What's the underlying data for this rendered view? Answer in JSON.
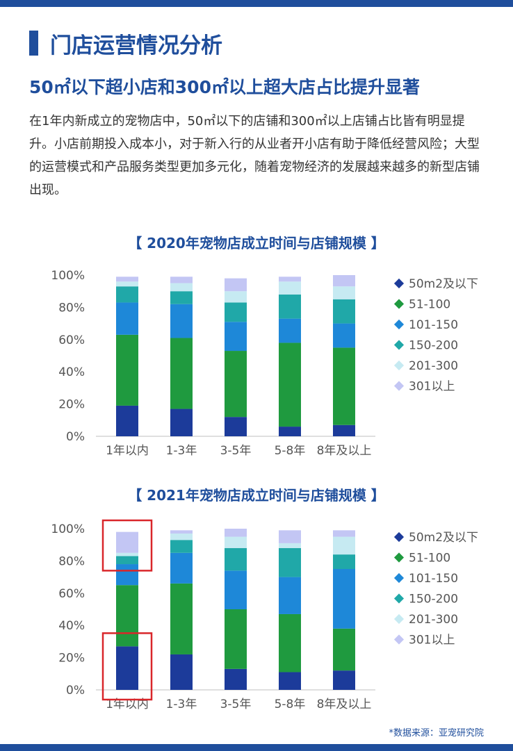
{
  "header": {
    "title": "门店运营情况分析",
    "subtitle": "50㎡以下超小店和300㎡以上超大店占比提升显著"
  },
  "body": {
    "paragraph": "在1年内新成立的宠物店中，50㎡以下的店铺和300㎡以上店铺占比皆有明显提升。小店前期投入成本小，对于新入行的从业者开小店有助于降低经营风险；大型的运营模式和产品服务类型更加多元化，随着宠物经济的发展越来越多的新型店铺出现。"
  },
  "source": "*数据来源：亚宠研究院",
  "colors": {
    "accent": "#1f4e9c",
    "highlight": "#d9262a",
    "series": [
      "#1c3b9a",
      "#1f9a3f",
      "#1e88d8",
      "#20a8a8",
      "#c6eaf2",
      "#c3c6f4"
    ]
  },
  "chart_data": [
    {
      "type": "bar",
      "stacked": true,
      "title": "【 2020年宠物店成立时间与店铺规模 】",
      "categories": [
        "1年以内",
        "1-3年",
        "3-5年",
        "5-8年",
        "8年及以上"
      ],
      "y_ticks": [
        "0%",
        "20%",
        "40%",
        "60%",
        "80%",
        "100%"
      ],
      "ylim": [
        0,
        100
      ],
      "legend_position": "right",
      "series": [
        {
          "name": "50m2及以下",
          "values": [
            19,
            17,
            12,
            6,
            7
          ]
        },
        {
          "name": "51-100",
          "values": [
            44,
            44,
            41,
            52,
            48
          ]
        },
        {
          "name": "101-150",
          "values": [
            20,
            21,
            18,
            15,
            15
          ]
        },
        {
          "name": "150-200",
          "values": [
            10,
            8,
            12,
            15,
            15
          ]
        },
        {
          "name": "201-300",
          "values": [
            3,
            5,
            7,
            8,
            8
          ]
        },
        {
          "name": "301以上",
          "values": [
            3,
            4,
            8,
            3,
            7
          ]
        }
      ],
      "highlights": []
    },
    {
      "type": "bar",
      "stacked": true,
      "title": "【 2021年宠物店成立时间与店铺规模 】",
      "categories": [
        "1年以内",
        "1-3年",
        "3-5年",
        "5-8年",
        "8年及以上"
      ],
      "y_ticks": [
        "0%",
        "20%",
        "40%",
        "60%",
        "80%",
        "100%"
      ],
      "ylim": [
        0,
        100
      ],
      "legend_position": "right",
      "series": [
        {
          "name": "50m2及以下",
          "values": [
            27,
            22,
            13,
            11,
            12
          ]
        },
        {
          "name": "51-100",
          "values": [
            38,
            44,
            37,
            36,
            26
          ]
        },
        {
          "name": "101-150",
          "values": [
            13,
            19,
            24,
            23,
            37
          ]
        },
        {
          "name": "150-200",
          "values": [
            5,
            8,
            14,
            18,
            9
          ]
        },
        {
          "name": "201-300",
          "values": [
            2,
            4,
            7,
            3,
            11
          ]
        },
        {
          "name": "301以上",
          "values": [
            13,
            2,
            5,
            8,
            4
          ]
        }
      ],
      "highlights": [
        {
          "category": "1年以内",
          "from": 80,
          "to": 100
        },
        {
          "category": "1年以内",
          "from": 0,
          "to": 30
        }
      ]
    }
  ]
}
